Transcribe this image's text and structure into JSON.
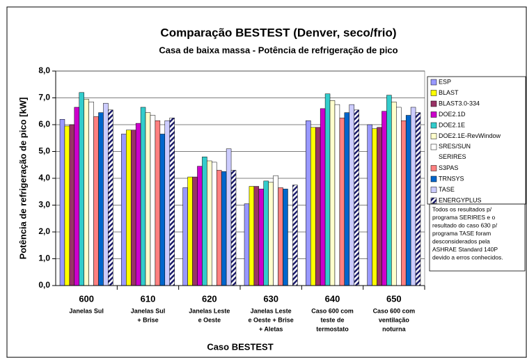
{
  "chart_data": {
    "type": "bar",
    "title": "Comparação BESTEST (Denver, seco/frio)",
    "subtitle": "Casa de baixa massa - Potência de refrigeração de pico",
    "ylabel": "Potência de refrigeração de pico [kW]",
    "xlabel": "Caso BESTEST",
    "categories": [
      "600",
      "610",
      "620",
      "630",
      "640",
      "650"
    ],
    "category_notes": [
      [
        "Janelas Sul"
      ],
      [
        "Janelas Sul",
        "+ Brise"
      ],
      [
        "Janelas Leste",
        "e Oeste"
      ],
      [
        "Janelas Leste",
        "e Oeste + Brise",
        "+ Aletas"
      ],
      [
        "Caso 600 com",
        "teste de",
        "termostato"
      ],
      [
        "Caso 600 com",
        "ventilação",
        "noturna"
      ]
    ],
    "series": [
      {
        "name": "ESP",
        "color": "#9999ff",
        "values": [
          6.2,
          5.65,
          3.65,
          3.05,
          6.15,
          6.0
        ]
      },
      {
        "name": "BLAST",
        "color": "#ffff00",
        "values": [
          5.95,
          5.8,
          4.05,
          3.7,
          5.9,
          5.85
        ]
      },
      {
        "name": "BLAST3.0-334",
        "color": "#993366",
        "values": [
          6.0,
          5.8,
          4.05,
          3.7,
          5.9,
          5.9
        ]
      },
      {
        "name": "DOE2.1D",
        "color": "#cc00cc",
        "values": [
          6.65,
          6.05,
          4.45,
          3.6,
          6.6,
          6.5
        ]
      },
      {
        "name": "DOE2.1E",
        "color": "#33cccc",
        "values": [
          7.2,
          6.65,
          4.8,
          3.9,
          7.15,
          7.1
        ]
      },
      {
        "name": "DOE2.1E-RevWindow",
        "color": "#ffffcc",
        "values": [
          6.95,
          6.45,
          4.65,
          3.85,
          6.9,
          6.85
        ]
      },
      {
        "name": "SRES/SUN SERIRES",
        "color": "#ffffff",
        "values": [
          6.85,
          6.35,
          4.6,
          4.1,
          6.75,
          6.65
        ]
      },
      {
        "name": "S3PAS",
        "color": "#ff8080",
        "values": [
          6.3,
          6.15,
          4.3,
          3.65,
          6.25,
          6.15
        ]
      },
      {
        "name": "TRNSYS",
        "color": "#0066cc",
        "values": [
          6.45,
          5.65,
          4.25,
          3.6,
          6.45,
          6.35
        ]
      },
      {
        "name": "TASE",
        "color": "#ccccff",
        "values": [
          6.8,
          6.15,
          5.1,
          null,
          6.75,
          6.65
        ]
      },
      {
        "name": "ENERGYPLUS",
        "color": "#1c1c6b",
        "hatched": true,
        "values": [
          6.55,
          6.25,
          4.3,
          3.75,
          6.55,
          6.45
        ]
      }
    ],
    "ylim": [
      0,
      8
    ],
    "yticks": [
      {
        "value": 0,
        "label": "0,0"
      },
      {
        "value": 1,
        "label": "1,0"
      },
      {
        "value": 2,
        "label": "2,0"
      },
      {
        "value": 3,
        "label": "3,0"
      },
      {
        "value": 4,
        "label": "4,0"
      },
      {
        "value": 5,
        "label": "5,0"
      },
      {
        "value": 6,
        "label": "6,0"
      },
      {
        "value": 7,
        "label": "7,0"
      },
      {
        "value": 8,
        "label": "8,0"
      }
    ],
    "note": [
      "Todos os resultados p/",
      "programa SERIRES e o",
      "resultado do caso 630 p/",
      "programa TASE foram",
      "desconsiderados pela",
      "ASHRAE Standard 140P",
      "devido a erros conhecidos."
    ]
  }
}
